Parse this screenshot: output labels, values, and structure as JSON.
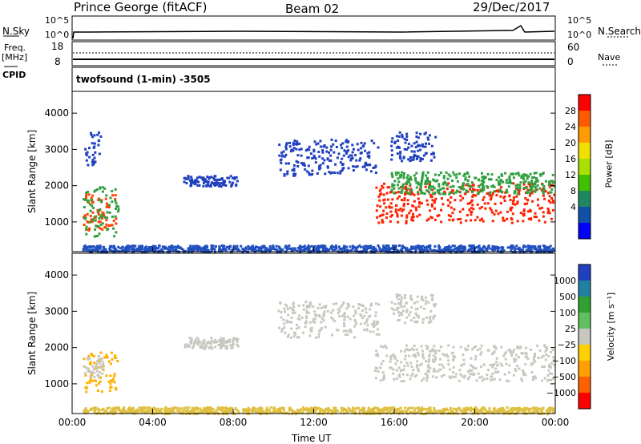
{
  "header": {
    "station": "Prince George (fitACF)",
    "beam": "Beam 02",
    "date": "29/Dec/2017"
  },
  "top_panels": {
    "nsky_label": "N.Sky",
    "nsky_ticks": [
      "10^5",
      "10^0"
    ],
    "nsearch_label": "N.Search",
    "nsearch_ticks": [
      "10^5",
      "10^0"
    ],
    "freq_label_1": "Freq.",
    "freq_label_2": "[MHz]",
    "freq_ticks": [
      "18",
      "8"
    ],
    "nave_label": "Nave",
    "nave_ticks": [
      "60",
      "0"
    ],
    "cpid_label": "CPID",
    "cpid_value": "twofsound (1-min) -3505"
  },
  "chart_data": [
    {
      "type": "heatmap",
      "name": "power-panel",
      "ylabel": "Slant Range [km]",
      "yticks": [
        1000,
        2000,
        3000,
        4000
      ],
      "ylim": [
        180,
        4600
      ],
      "xlim": [
        0,
        24
      ],
      "xticks": [
        "00:00",
        "04:00",
        "08:00",
        "12:00",
        "16:00",
        "20:00",
        "00:00"
      ],
      "colorbar": {
        "label": "Power [dB]",
        "ticks": [
          "28",
          "24",
          "20",
          "16",
          "12",
          "8",
          "4"
        ],
        "colors": [
          "#ff0000",
          "#ff5a00",
          "#ff9a00",
          "#f0e000",
          "#a8e000",
          "#40c000",
          "#208860",
          "#1050a8",
          "#0000ff"
        ]
      },
      "regions": [
        {
          "t0": 0.5,
          "t1": 2.2,
          "r0": 800,
          "r1": 1800,
          "color": "#ff4400"
        },
        {
          "t0": 0.5,
          "t1": 2.3,
          "r0": 600,
          "r1": 2000,
          "color": "#30a040"
        },
        {
          "t0": 0.6,
          "t1": 1.4,
          "r0": 2600,
          "r1": 3500,
          "color": "#2040c0"
        },
        {
          "t0": 0.5,
          "t1": 23.9,
          "r0": 200,
          "r1": 380,
          "color": "#2050c0"
        },
        {
          "t0": 10.2,
          "t1": 15.2,
          "r0": 2300,
          "r1": 3300,
          "color": "#2040c0"
        },
        {
          "t0": 15.0,
          "t1": 23.9,
          "r0": 1000,
          "r1": 2100,
          "color": "#ff2000"
        },
        {
          "t0": 15.8,
          "t1": 23.9,
          "r0": 1800,
          "r1": 2400,
          "color": "#30a040"
        },
        {
          "t0": 15.8,
          "t1": 18.0,
          "r0": 2700,
          "r1": 3500,
          "color": "#2040c0"
        },
        {
          "t0": 5.5,
          "t1": 8.2,
          "r0": 2000,
          "r1": 2300,
          "color": "#2040c0"
        }
      ]
    },
    {
      "type": "heatmap",
      "name": "velocity-panel",
      "ylabel": "Slant Range [km]",
      "yticks": [
        1000,
        2000,
        3000,
        4000
      ],
      "ylim": [
        180,
        4600
      ],
      "xlim": [
        0,
        24
      ],
      "xticks": [
        "00:00",
        "04:00",
        "08:00",
        "12:00",
        "16:00",
        "20:00",
        "00:00"
      ],
      "xlabel": "Time UT",
      "colorbar": {
        "label": "Velocity [m s⁻¹]",
        "ticks": [
          "1000",
          "500",
          "100",
          "25",
          "−25",
          "−100",
          "−500",
          "−1000"
        ],
        "colors": [
          "#2040c0",
          "#2080a0",
          "#30a030",
          "#60c060",
          "#c8c8c0",
          "#ffd000",
          "#ffa000",
          "#ff6000",
          "#ff0000"
        ]
      },
      "regions": [
        {
          "t0": 0.5,
          "t1": 2.2,
          "r0": 800,
          "r1": 1900,
          "color": "#ffb000"
        },
        {
          "t0": 0.5,
          "t1": 1.5,
          "r0": 1200,
          "r1": 1800,
          "color": "#c8c8c0"
        },
        {
          "t0": 0.5,
          "t1": 23.9,
          "r0": 200,
          "r1": 380,
          "color": "#e0c040"
        },
        {
          "t0": 10.2,
          "t1": 15.2,
          "r0": 2300,
          "r1": 3300,
          "color": "#c8c8c0"
        },
        {
          "t0": 15.0,
          "t1": 23.9,
          "r0": 1100,
          "r1": 2100,
          "color": "#c8c8c0"
        },
        {
          "t0": 15.8,
          "t1": 18.0,
          "r0": 2700,
          "r1": 3500,
          "color": "#c8c8c0"
        },
        {
          "t0": 5.5,
          "t1": 8.2,
          "r0": 2000,
          "r1": 2300,
          "color": "#c8c8c0"
        }
      ]
    }
  ]
}
